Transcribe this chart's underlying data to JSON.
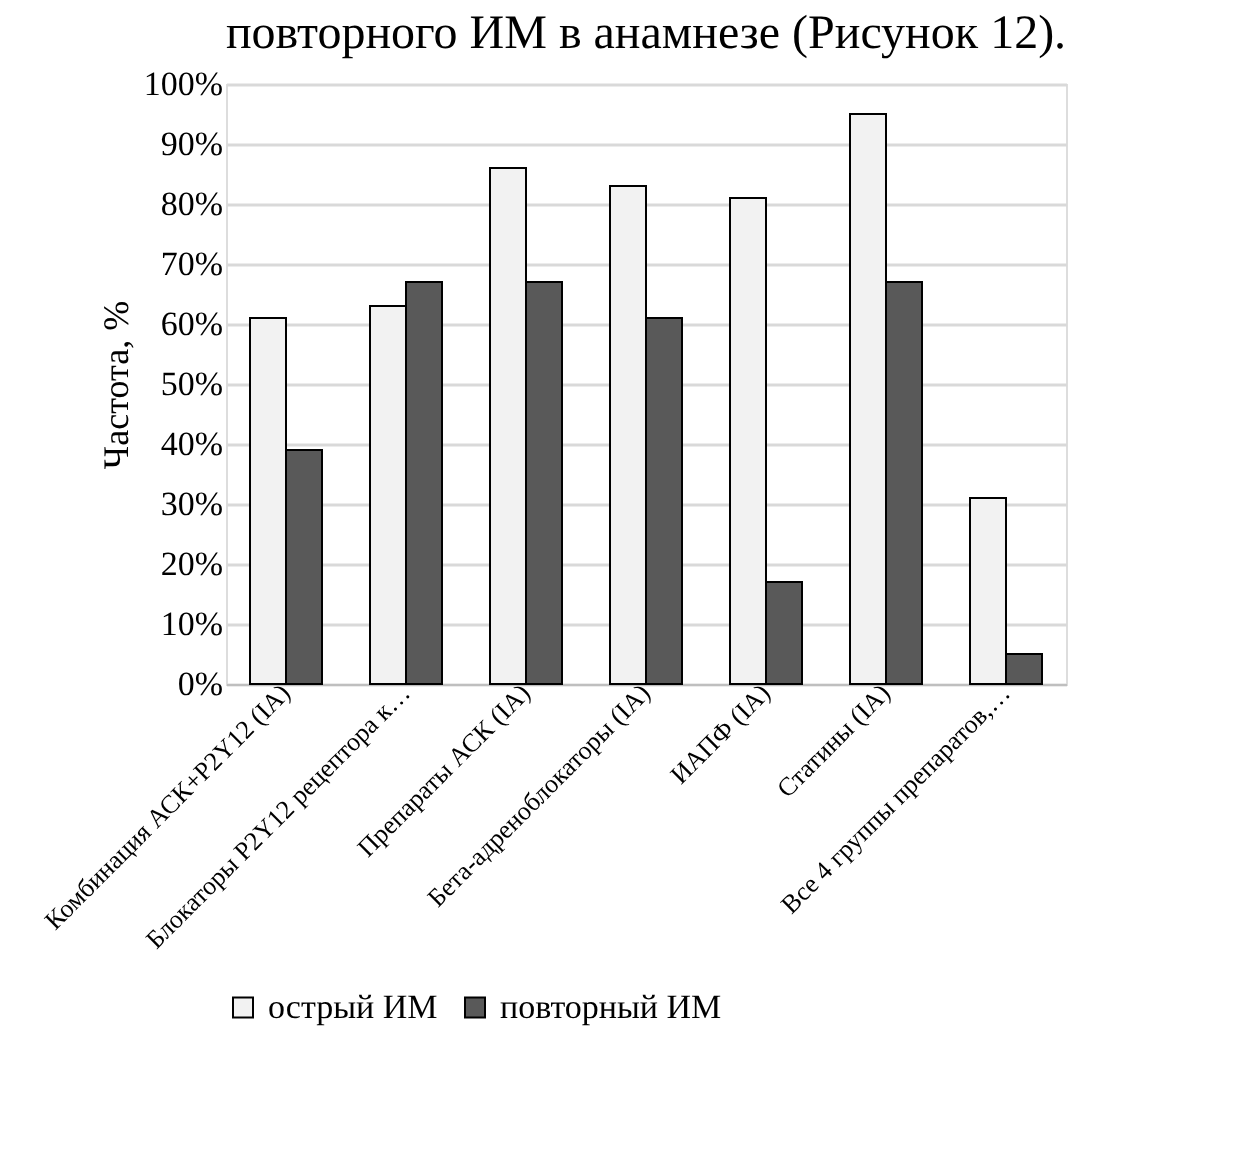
{
  "chart_data": {
    "type": "bar",
    "ylabel": "Частота, %",
    "annotations": [
      "повторного ИМ в анамнезе (Рисунок 12)."
    ],
    "categories": [
      "Комбинация АСК+P2Y12 (IA)",
      "Блокаторы P2Y12 рецептора к…",
      "Препараты АСК (IA)",
      "Бета-адреноблокаторы (IA)",
      "ИАПФ (IA)",
      "Статины (IA)",
      "Все 4 группы препаратов,…"
    ],
    "series": [
      {
        "name": "острый ИМ",
        "color": "#f2f2f2",
        "values": [
          61,
          63,
          86,
          83,
          81,
          95,
          31
        ]
      },
      {
        "name": "повторный ИМ",
        "color": "#595959",
        "values": [
          39,
          67,
          67,
          61,
          17,
          67,
          5
        ]
      }
    ],
    "ylim": [
      0,
      100
    ],
    "yticks": [
      {
        "value": 0,
        "label": "0%"
      },
      {
        "value": 10,
        "label": "10%"
      },
      {
        "value": 20,
        "label": "20%"
      },
      {
        "value": 30,
        "label": "30%"
      },
      {
        "value": 40,
        "label": "40%"
      },
      {
        "value": 50,
        "label": "50%"
      },
      {
        "value": 60,
        "label": "60%"
      },
      {
        "value": 70,
        "label": "70%"
      },
      {
        "value": 80,
        "label": "80%"
      },
      {
        "value": 90,
        "label": "90%"
      },
      {
        "value": 100,
        "label": "100%"
      }
    ],
    "grid": "y",
    "legend": "bottom"
  }
}
